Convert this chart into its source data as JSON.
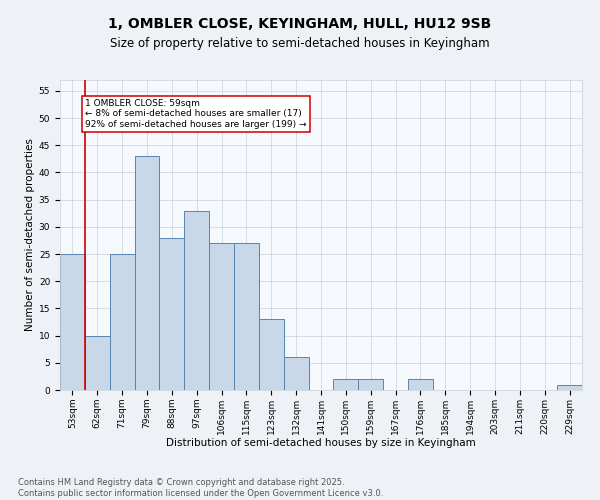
{
  "title": "1, OMBLER CLOSE, KEYINGHAM, HULL, HU12 9SB",
  "subtitle": "Size of property relative to semi-detached houses in Keyingham",
  "xlabel": "Distribution of semi-detached houses by size in Keyingham",
  "ylabel": "Number of semi-detached properties",
  "categories": [
    "53sqm",
    "62sqm",
    "71sqm",
    "79sqm",
    "88sqm",
    "97sqm",
    "106sqm",
    "115sqm",
    "123sqm",
    "132sqm",
    "141sqm",
    "150sqm",
    "159sqm",
    "167sqm",
    "176sqm",
    "185sqm",
    "194sqm",
    "203sqm",
    "211sqm",
    "220sqm",
    "229sqm"
  ],
  "values": [
    25,
    10,
    25,
    43,
    28,
    33,
    27,
    27,
    13,
    6,
    0,
    2,
    2,
    0,
    2,
    0,
    0,
    0,
    0,
    0,
    1
  ],
  "bar_color": "#c8d8e8",
  "bar_edge_color": "#5585b0",
  "annotation_text": "1 OMBLER CLOSE: 59sqm\n← 8% of semi-detached houses are smaller (17)\n92% of semi-detached houses are larger (199) →",
  "annotation_box_color": "#ffffff",
  "annotation_box_edge": "#cc0000",
  "vline_color": "#cc0000",
  "ylim": [
    0,
    57
  ],
  "yticks": [
    0,
    5,
    10,
    15,
    20,
    25,
    30,
    35,
    40,
    45,
    50,
    55
  ],
  "footer": "Contains HM Land Registry data © Crown copyright and database right 2025.\nContains public sector information licensed under the Open Government Licence v3.0.",
  "bg_color": "#eef2f6",
  "plot_bg_color": "#f5f8fc",
  "grid_color": "#c8d0d8",
  "title_fontsize": 10,
  "subtitle_fontsize": 8.5,
  "axis_label_fontsize": 7.5,
  "tick_fontsize": 6.5,
  "footer_fontsize": 6.0
}
